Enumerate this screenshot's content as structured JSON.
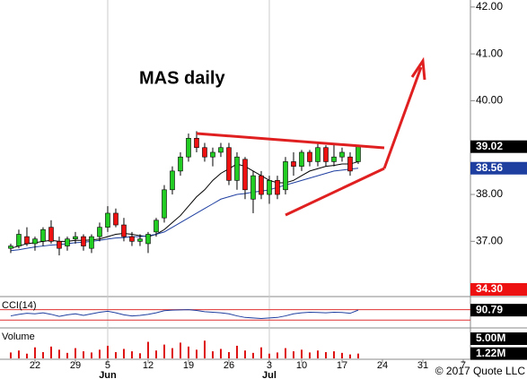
{
  "chart_data": {
    "type": "candlestick",
    "title": "MAS daily",
    "open": [
      36.85,
      36.9,
      37.1,
      36.95,
      37.0,
      37.3,
      37.0,
      36.9,
      37.05,
      37.1,
      36.85,
      37.1,
      37.3,
      37.6,
      37.35,
      37.1,
      37.0,
      36.95,
      37.2,
      37.5,
      38.1,
      38.5,
      38.8,
      39.2,
      39.0,
      38.8,
      38.9,
      39.0,
      38.3,
      38.75,
      37.9,
      38.4,
      38.0,
      38.3,
      38.1,
      38.7,
      38.6,
      38.9,
      38.7,
      39.0,
      38.7,
      38.8,
      38.8,
      38.7
    ],
    "high": [
      36.95,
      37.25,
      37.3,
      37.1,
      37.3,
      37.45,
      37.1,
      37.1,
      37.2,
      37.15,
      37.15,
      37.4,
      37.75,
      37.7,
      37.5,
      37.2,
      37.15,
      37.2,
      37.5,
      38.2,
      38.6,
      38.9,
      39.3,
      39.35,
      39.1,
      39.0,
      39.1,
      39.1,
      38.9,
      38.8,
      38.5,
      38.5,
      38.4,
      38.4,
      38.8,
      38.9,
      38.95,
      38.95,
      39.1,
      39.05,
      39.1,
      39.0,
      38.9,
      39.05
    ],
    "low": [
      36.75,
      36.85,
      36.9,
      36.8,
      36.9,
      36.95,
      36.7,
      36.8,
      36.95,
      36.8,
      36.75,
      37.0,
      37.2,
      37.3,
      37.0,
      36.9,
      36.9,
      36.75,
      37.1,
      37.4,
      38.0,
      38.4,
      38.7,
      38.9,
      38.7,
      38.6,
      38.8,
      38.2,
      38.1,
      37.9,
      37.6,
      37.9,
      37.8,
      37.9,
      38.0,
      38.4,
      38.5,
      38.6,
      38.6,
      38.6,
      38.6,
      38.7,
      38.4,
      38.65
    ],
    "close": [
      36.9,
      37.15,
      36.95,
      37.05,
      37.25,
      37.0,
      36.85,
      37.05,
      37.1,
      36.9,
      37.1,
      37.3,
      37.6,
      37.35,
      37.1,
      37.0,
      37.05,
      37.15,
      37.45,
      38.1,
      38.5,
      38.8,
      39.2,
      39.0,
      38.8,
      38.9,
      39.0,
      38.3,
      38.8,
      38.1,
      38.4,
      38.0,
      38.3,
      38.0,
      38.7,
      38.6,
      38.9,
      38.7,
      39.0,
      38.7,
      38.8,
      38.9,
      38.5,
      39.02
    ],
    "up_color": "#22cc22",
    "down_color": "#ee1111",
    "ma": [
      {
        "color": "#000000",
        "values": [
          36.85,
          36.9,
          36.95,
          36.97,
          37.0,
          37.02,
          37.0,
          37.0,
          37.02,
          37.02,
          37.03,
          37.05,
          37.1,
          37.15,
          37.17,
          37.15,
          37.12,
          37.1,
          37.15,
          37.25,
          37.4,
          37.55,
          37.75,
          37.95,
          38.1,
          38.3,
          38.45,
          38.55,
          38.65,
          38.6,
          38.5,
          38.4,
          38.3,
          38.25,
          38.25,
          38.3,
          38.4,
          38.5,
          38.55,
          38.6,
          38.62,
          38.65,
          38.65,
          38.7
        ]
      },
      {
        "color": "#1f3fa0",
        "values": [
          36.8,
          36.82,
          36.85,
          36.88,
          36.9,
          36.92,
          36.93,
          36.95,
          36.97,
          36.98,
          37.0,
          37.02,
          37.05,
          37.07,
          37.08,
          37.1,
          37.1,
          37.12,
          37.15,
          37.2,
          37.3,
          37.4,
          37.5,
          37.6,
          37.7,
          37.8,
          37.9,
          37.95,
          38.0,
          38.02,
          38.05,
          38.07,
          38.1,
          38.15,
          38.2,
          38.25,
          38.3,
          38.35,
          38.4,
          38.45,
          38.5,
          38.52,
          38.54,
          38.56
        ]
      }
    ],
    "xlim": [
      -1.33,
      56.89
    ],
    "ylim": [
      35.84,
      42.15
    ],
    "yticks": [
      {
        "value": 42,
        "label": "42.00"
      },
      {
        "value": 41,
        "label": "41.00"
      },
      {
        "value": 40,
        "label": "40.00"
      },
      {
        "value": 38,
        "label": "38.00"
      },
      {
        "value": 37,
        "label": "37.00"
      }
    ],
    "price_tags": [
      {
        "value": 39.02,
        "label": "39.02",
        "color": "#000000"
      },
      {
        "value": 38.56,
        "label": "38.56",
        "color": "#1f3fa0"
      },
      {
        "value": 34.3,
        "label": "34.30",
        "color": "#ee1111"
      }
    ],
    "xticks": [
      {
        "value": 3,
        "label": "22"
      },
      {
        "value": 8,
        "label": "29"
      },
      {
        "value": 12,
        "label": "5"
      },
      {
        "value": 17,
        "label": "12"
      },
      {
        "value": 22,
        "label": "19"
      },
      {
        "value": 27,
        "label": "26"
      },
      {
        "value": 32,
        "label": "3"
      },
      {
        "value": 36,
        "label": "10"
      },
      {
        "value": 41,
        "label": "17"
      },
      {
        "value": 46,
        "label": "24"
      },
      {
        "value": 51,
        "label": "31"
      },
      {
        "value": 56,
        "label": "7"
      }
    ],
    "months": [
      {
        "value": 12,
        "label": "Jun"
      },
      {
        "value": 32,
        "label": "Jul"
      }
    ],
    "cci": {
      "label": "CCI(14)",
      "ylim": [
        -217,
        300
      ],
      "levels": [
        100,
        -100
      ],
      "color": "#1f3fa0",
      "values": [
        -20,
        10,
        30,
        20,
        40,
        10,
        -30,
        0,
        20,
        -10,
        20,
        50,
        70,
        40,
        0,
        -20,
        -10,
        10,
        40,
        80,
        90,
        95,
        100,
        85,
        60,
        50,
        40,
        20,
        -20,
        -50,
        -60,
        -70,
        -60,
        -50,
        -20,
        20,
        40,
        50,
        45,
        40,
        50,
        45,
        30,
        90.79
      ],
      "tags": [
        {
          "value": 90.79,
          "label": "90.79"
        }
      ]
    },
    "volume": {
      "label": "Volume",
      "ylim": [
        0,
        7.27
      ],
      "color": "#dd1111",
      "values": [
        1.5,
        2.0,
        1.2,
        2.8,
        1.6,
        3.0,
        2.2,
        1.4,
        2.6,
        1.8,
        1.5,
        2.2,
        3.2,
        1.6,
        2.4,
        1.8,
        1.3,
        4.2,
        2.0,
        3.5,
        2.6,
        4.0,
        3.0,
        2.2,
        4.5,
        1.8,
        2.4,
        1.6,
        3.2,
        2.0,
        1.4,
        2.8,
        1.2,
        1.5,
        2.6,
        1.8,
        2.2,
        1.5,
        2.0,
        1.6,
        1.8,
        1.4,
        1.0,
        1.22
      ],
      "tags": [
        {
          "value": 5,
          "label": "5.00M"
        },
        {
          "value": 1.22,
          "label": "1.22M"
        }
      ]
    },
    "copyright": "© 2017 Quote LLC"
  }
}
